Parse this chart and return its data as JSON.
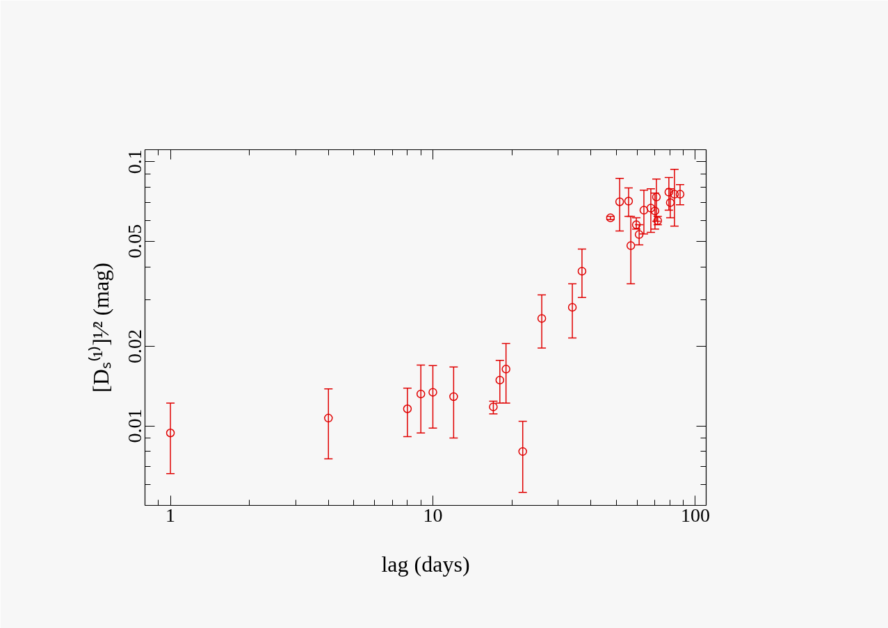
{
  "chart_data": {
    "type": "scatter",
    "xlabel": "lag (days)",
    "ylabel": "[Dₛ⁽¹⁾]¹⁄² (mag)",
    "log": "xy",
    "grid": false,
    "marker": "circle",
    "xlim": [
      0.8,
      110
    ],
    "ylim": [
      0.005,
      0.111
    ],
    "xticks": [
      {
        "value": 0.9,
        "label": null
      },
      1,
      {
        "value": 2,
        "label": null
      },
      {
        "value": 3,
        "label": null
      },
      {
        "value": 4,
        "label": null
      },
      {
        "value": 5,
        "label": null
      },
      {
        "value": 6,
        "label": null
      },
      {
        "value": 7,
        "label": null
      },
      {
        "value": 8,
        "label": null
      },
      {
        "value": 9,
        "label": null
      },
      10,
      {
        "value": 20,
        "label": null
      },
      {
        "value": 30,
        "label": null
      },
      {
        "value": 40,
        "label": null
      },
      {
        "value": 50,
        "label": null
      },
      {
        "value": 60,
        "label": null
      },
      {
        "value": 70,
        "label": null
      },
      {
        "value": 80,
        "label": null
      },
      {
        "value": 90,
        "label": null
      },
      100
    ],
    "yticks": [
      {
        "value": 0.006,
        "label": null
      },
      {
        "value": 0.007,
        "label": null
      },
      {
        "value": 0.008,
        "label": null
      },
      {
        "value": 0.009,
        "label": null
      },
      0.01,
      0.02,
      {
        "value": 0.03,
        "label": null
      },
      {
        "value": 0.04,
        "label": null
      },
      0.05,
      {
        "value": 0.06,
        "label": null
      },
      {
        "value": 0.07,
        "label": null
      },
      {
        "value": 0.08,
        "label": null
      },
      {
        "value": 0.09,
        "label": null
      },
      0.1
    ],
    "series": [
      {
        "color": "#e00000",
        "x": [
          1,
          4,
          8,
          9,
          10,
          12,
          17,
          18,
          19,
          22,
          26,
          34,
          37,
          47.5,
          51.5,
          55.7,
          56.8,
          59.6,
          61.1,
          63.7,
          67.7,
          70.2,
          71.1,
          71.9,
          79.3,
          80.3,
          83.3,
          87.5
        ],
        "values": [
          0.0094,
          0.0107,
          0.0116,
          0.0132,
          0.0134,
          0.0129,
          0.0118,
          0.0149,
          0.0164,
          0.008,
          0.0255,
          0.0281,
          0.0385,
          0.0613,
          0.0705,
          0.0709,
          0.0481,
          0.0577,
          0.053,
          0.0655,
          0.0667,
          0.0651,
          0.0735,
          0.0598,
          0.0767,
          0.07,
          0.0753,
          0.0753
        ],
        "errors": [
          [
            0.0066,
            0.0122
          ],
          [
            0.0075,
            0.0138
          ],
          [
            0.0091,
            0.0139
          ],
          [
            0.0094,
            0.017
          ],
          [
            0.0098,
            0.0169
          ],
          [
            0.009,
            0.0167
          ],
          [
            0.0111,
            0.0124
          ],
          [
            0.0122,
            0.0177
          ],
          [
            0.0122,
            0.0205
          ],
          [
            0.0056,
            0.0104
          ],
          [
            0.0197,
            0.0313
          ],
          [
            0.0215,
            0.0345
          ],
          [
            0.0306,
            0.0467
          ],
          [
            0.0604,
            0.0621
          ],
          [
            0.0547,
            0.0865
          ],
          [
            0.0621,
            0.0795
          ],
          [
            0.0345,
            0.0621
          ],
          [
            0.0556,
            0.0613
          ],
          [
            0.0484,
            0.0577
          ],
          [
            0.0533,
            0.078
          ],
          [
            0.054,
            0.079
          ],
          [
            0.0556,
            0.076
          ],
          [
            0.0595,
            0.086
          ],
          [
            0.0577,
            0.0621
          ],
          [
            0.0655,
            0.0871
          ],
          [
            0.0613,
            0.079
          ],
          [
            0.057,
            0.0936
          ],
          [
            0.0687,
            0.0819
          ]
        ]
      }
    ]
  }
}
